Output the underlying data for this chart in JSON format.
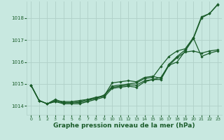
{
  "bg_color": "#c8e8e0",
  "grid_color": "#b0d0c8",
  "line_color": "#1a5c2a",
  "xlabel": "Graphe pression niveau de la mer (hPa)",
  "xlabel_color": "#1a5c2a",
  "ylim": [
    1013.6,
    1018.75
  ],
  "xlim": [
    -0.5,
    23.5
  ],
  "yticks": [
    1014,
    1015,
    1016,
    1017,
    1018
  ],
  "xticks": [
    0,
    1,
    2,
    3,
    4,
    5,
    6,
    7,
    8,
    9,
    10,
    11,
    12,
    13,
    14,
    15,
    16,
    17,
    18,
    19,
    20,
    21,
    22,
    23
  ],
  "series": {
    "line1": [
      1014.95,
      1014.25,
      1014.1,
      1014.2,
      1014.1,
      1014.1,
      1014.1,
      1014.2,
      1014.3,
      1014.4,
      1014.8,
      1014.85,
      1014.9,
      1014.85,
      1015.1,
      1015.2,
      1015.2,
      1015.85,
      1016.0,
      1016.5,
      1017.05,
      1018.0,
      1018.2,
      1018.6
    ],
    "line2": [
      1014.95,
      1014.25,
      1014.1,
      1014.2,
      1014.15,
      1014.15,
      1014.15,
      1014.25,
      1014.35,
      1014.45,
      1015.05,
      1015.1,
      1015.15,
      1015.1,
      1015.3,
      1015.35,
      1015.25,
      1015.9,
      1016.25,
      1016.55,
      1017.1,
      1018.05,
      1018.2,
      1018.62
    ],
    "line3": [
      1014.95,
      1014.25,
      1014.1,
      1014.3,
      1014.15,
      1014.15,
      1014.2,
      1014.3,
      1014.35,
      1014.5,
      1014.85,
      1014.9,
      1014.95,
      1014.95,
      1015.15,
      1015.2,
      1015.3,
      1015.85,
      1016.2,
      1016.45,
      1016.5,
      1016.4,
      1016.5,
      1016.55
    ],
    "line4": [
      1014.95,
      1014.25,
      1014.1,
      1014.25,
      1014.2,
      1014.2,
      1014.25,
      1014.3,
      1014.4,
      1014.45,
      1014.9,
      1014.95,
      1015.0,
      1015.05,
      1015.25,
      1015.3,
      1015.8,
      1016.25,
      1016.5,
      1016.6,
      1017.1,
      1016.25,
      1016.4,
      1016.5
    ]
  }
}
